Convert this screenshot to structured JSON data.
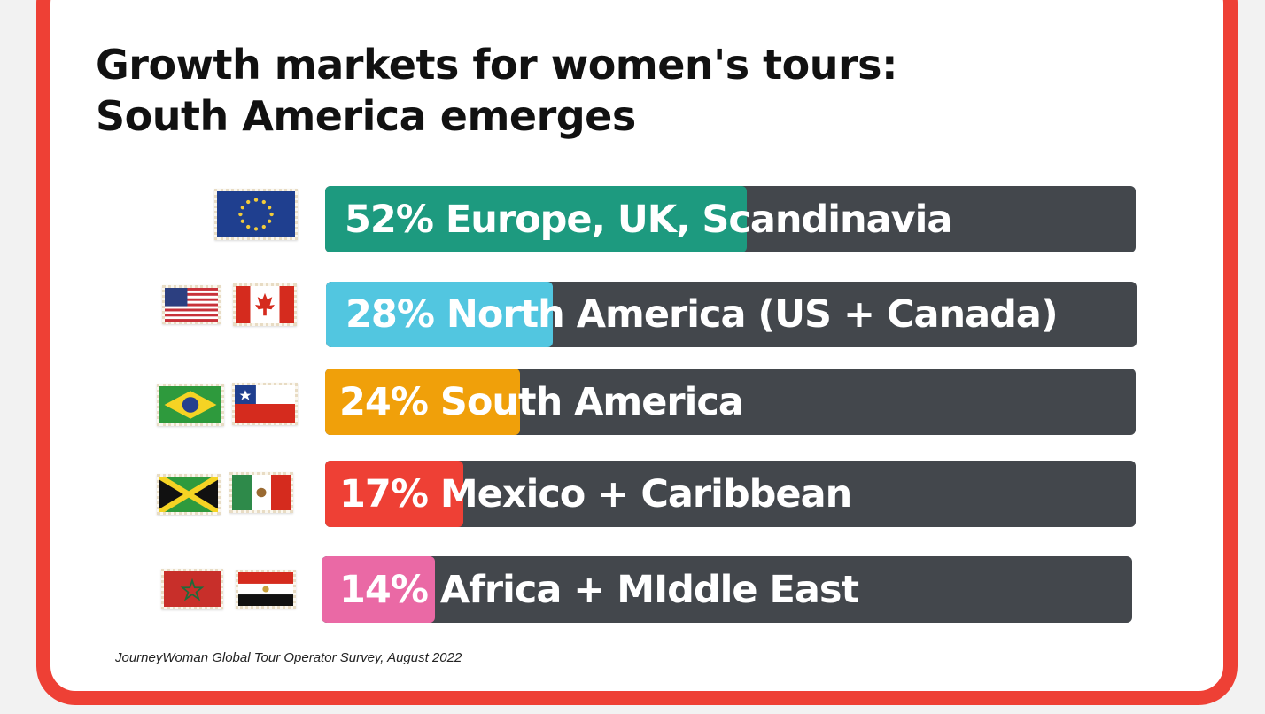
{
  "title": {
    "line1": "Growth markets for women's tours:",
    "line2": "South America emerges"
  },
  "source": "JourneyWoman Global Tour Operator Survey, August 2022",
  "colors": {
    "border": "#ee4035",
    "track": "#43474c",
    "europe": "#1d9a7f",
    "north_america": "#52c6e0",
    "south_america": "#f0a00a",
    "mexico_caribbean": "#ee4035",
    "africa_middle_east": "#ea69a5"
  },
  "chart_data": {
    "type": "bar",
    "orientation": "horizontal",
    "categories": [
      "52% Europe, UK, Scandinavia",
      "28% North America (US + Canada)",
      "24% South America",
      "17% Mexico + Caribbean",
      "14% Africa + MIddle East"
    ],
    "values": [
      52,
      28,
      24,
      17,
      14
    ],
    "unit": "%",
    "xlim": [
      0,
      100
    ],
    "flags": [
      [
        "eu-flag-icon"
      ],
      [
        "us-flag-icon",
        "canada-flag-icon"
      ],
      [
        "brazil-flag-icon",
        "chile-flag-icon"
      ],
      [
        "jamaica-flag-icon",
        "mexico-flag-icon"
      ],
      [
        "morocco-flag-icon",
        "egypt-flag-icon"
      ]
    ]
  }
}
